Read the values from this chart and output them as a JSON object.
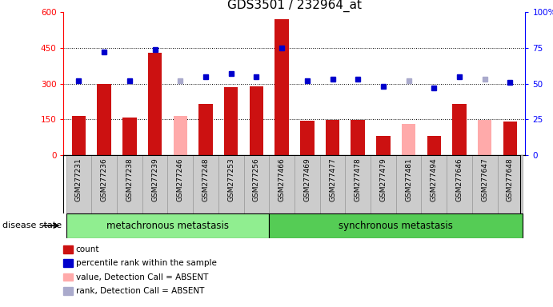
{
  "title": "GDS3501 / 232964_at",
  "samples": [
    "GSM277231",
    "GSM277236",
    "GSM277238",
    "GSM277239",
    "GSM277246",
    "GSM277248",
    "GSM277253",
    "GSM277256",
    "GSM277466",
    "GSM277469",
    "GSM277477",
    "GSM277478",
    "GSM277479",
    "GSM277481",
    "GSM277494",
    "GSM277646",
    "GSM277647",
    "GSM277648"
  ],
  "count_values": [
    165,
    300,
    158,
    430,
    null,
    215,
    285,
    290,
    570,
    145,
    148,
    148,
    80,
    null,
    80,
    215,
    null,
    142
  ],
  "absent_value": [
    null,
    null,
    null,
    null,
    165,
    null,
    null,
    null,
    null,
    null,
    null,
    null,
    null,
    130,
    null,
    null,
    148,
    null
  ],
  "percentile_rank": [
    52,
    72,
    52,
    74,
    null,
    55,
    57,
    55,
    75,
    52,
    53,
    53,
    48,
    null,
    47,
    55,
    null,
    51
  ],
  "absent_rank": [
    null,
    null,
    null,
    null,
    52,
    null,
    null,
    null,
    null,
    null,
    null,
    null,
    null,
    52,
    null,
    null,
    53,
    null
  ],
  "group1_count": 8,
  "group2_count": 10,
  "group1_label": "metachronous metastasis",
  "group2_label": "synchronous metastasis",
  "disease_state_label": "disease state",
  "ylim_left": [
    0,
    600
  ],
  "ylim_right": [
    0,
    100
  ],
  "yticks_left": [
    0,
    150,
    300,
    450,
    600
  ],
  "yticks_right": [
    0,
    25,
    50,
    75,
    100
  ],
  "ytick_right_labels": [
    "0",
    "25",
    "50",
    "75",
    "100%"
  ],
  "grid_lines": [
    150,
    300,
    450
  ],
  "bar_color": "#cc1111",
  "absent_bar_color": "#ffaaaa",
  "dot_color": "#0000cc",
  "absent_dot_color": "#aaaacc",
  "sample_bg_color": "#cccccc",
  "group1_bg": "#90ee90",
  "group2_bg": "#55cc55",
  "title_fontsize": 11,
  "tick_fontsize": 7.5,
  "sample_fontsize": 6.5,
  "legend_fontsize": 7.5
}
